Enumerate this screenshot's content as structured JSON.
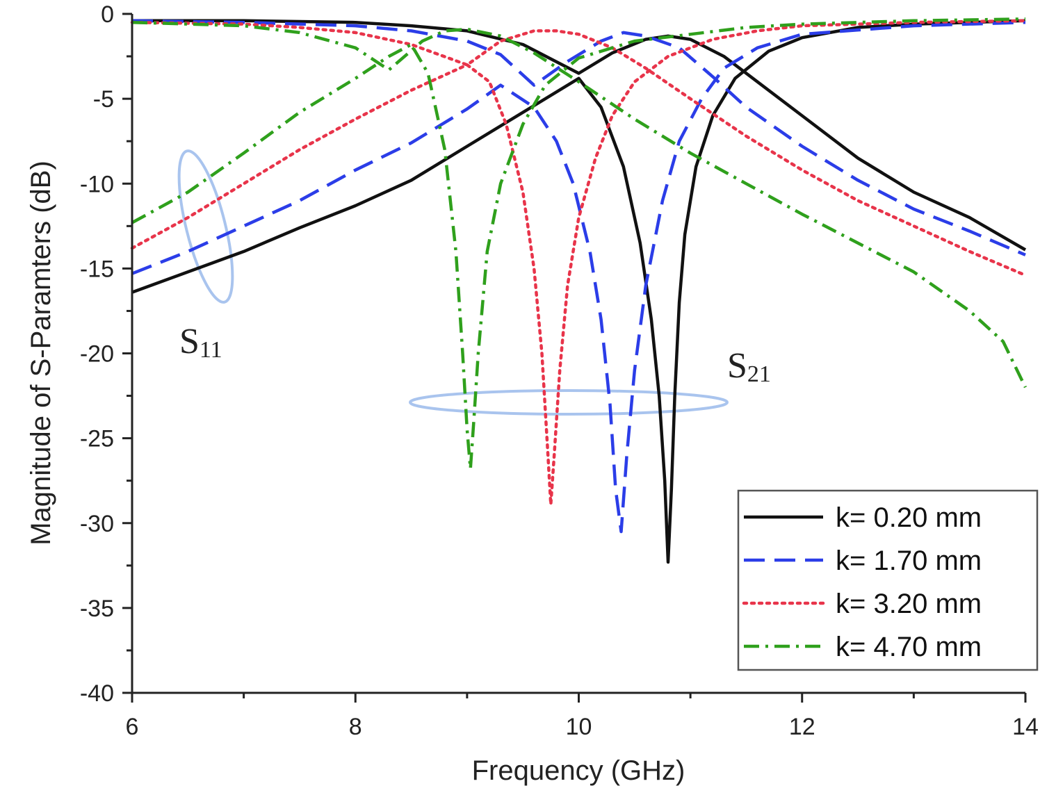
{
  "chart_data": {
    "type": "line",
    "title": "",
    "xlabel": "Frequency (GHz)",
    "ylabel": "Magnitude of S-Paramters (dB)",
    "xlim": [
      6,
      14
    ],
    "ylim": [
      -40,
      0
    ],
    "xticks": [
      6,
      8,
      10,
      12,
      14
    ],
    "yticks": [
      0,
      -5,
      -10,
      -15,
      -20,
      -25,
      -30,
      -35,
      -40
    ],
    "grid": false,
    "legend_position": "bottom-right",
    "annotations": [
      {
        "base": "S",
        "sub": "11"
      },
      {
        "base": "S",
        "sub": "21"
      }
    ],
    "series": [
      {
        "name": "k= 0.20 mm",
        "color": "#111111",
        "style": "solid",
        "s11": {
          "x": [
            6.0,
            6.5,
            7.0,
            7.5,
            8.0,
            8.5,
            9.0,
            9.5,
            10.0,
            10.2,
            10.4,
            10.55,
            10.65,
            10.72,
            10.77,
            10.8,
            10.83,
            10.86,
            10.9,
            10.95,
            11.05,
            11.2,
            11.4,
            11.7,
            12.0,
            12.5,
            13.0,
            13.5,
            14.0
          ],
          "y": [
            -16.4,
            -15.2,
            -14.0,
            -12.6,
            -11.3,
            -9.8,
            -7.8,
            -5.8,
            -3.8,
            -5.5,
            -9.0,
            -13.5,
            -18.0,
            -22.5,
            -27.5,
            -32.3,
            -28.0,
            -22.5,
            -17.0,
            -13.0,
            -9.0,
            -6.0,
            -3.8,
            -2.2,
            -1.4,
            -0.8,
            -0.6,
            -0.5,
            -0.4
          ]
        },
        "s21": {
          "x": [
            6.0,
            7.0,
            8.0,
            8.5,
            9.0,
            9.5,
            10.0,
            10.3,
            10.6,
            10.8,
            11.0,
            11.3,
            11.6,
            12.0,
            12.5,
            13.0,
            13.5,
            14.0
          ],
          "y": [
            -0.4,
            -0.4,
            -0.5,
            -0.7,
            -1.0,
            -1.8,
            -3.5,
            -2.3,
            -1.5,
            -1.3,
            -1.5,
            -2.5,
            -4.0,
            -6.0,
            -8.5,
            -10.5,
            -12.0,
            -13.9
          ]
        }
      },
      {
        "name": "k= 1.70 mm",
        "color": "#2b3de8",
        "style": "dashed",
        "s11": {
          "x": [
            6.0,
            6.5,
            7.0,
            7.5,
            8.0,
            8.5,
            9.0,
            9.3,
            9.6,
            9.8,
            9.95,
            10.1,
            10.2,
            10.28,
            10.33,
            10.38,
            10.43,
            10.5,
            10.6,
            10.75,
            10.9,
            11.1,
            11.3,
            11.6,
            12.0,
            13.0,
            14.0
          ],
          "y": [
            -15.3,
            -14.0,
            -12.5,
            -11.0,
            -9.2,
            -7.6,
            -5.6,
            -4.2,
            -5.5,
            -7.5,
            -10.0,
            -14.0,
            -18.0,
            -23.0,
            -28.0,
            -30.5,
            -26.0,
            -21.0,
            -16.0,
            -11.0,
            -7.5,
            -5.0,
            -3.2,
            -2.0,
            -1.2,
            -0.7,
            -0.5
          ]
        },
        "s21": {
          "x": [
            6.0,
            7.0,
            8.0,
            8.5,
            9.0,
            9.3,
            9.6,
            9.9,
            10.2,
            10.4,
            10.6,
            10.9,
            11.2,
            11.5,
            12.0,
            12.5,
            13.0,
            13.5,
            14.0
          ],
          "y": [
            -0.4,
            -0.5,
            -0.7,
            -1.0,
            -1.6,
            -2.4,
            -4.2,
            -2.8,
            -1.6,
            -1.1,
            -1.3,
            -2.0,
            -3.7,
            -5.5,
            -7.8,
            -9.8,
            -11.5,
            -12.8,
            -14.2
          ]
        }
      },
      {
        "name": "k= 3.20 mm",
        "color": "#e8344a",
        "style": "dotted",
        "s11": {
          "x": [
            6.0,
            6.5,
            7.0,
            7.5,
            8.0,
            8.5,
            9.0,
            9.2,
            9.35,
            9.5,
            9.6,
            9.67,
            9.72,
            9.75,
            9.78,
            9.83,
            9.9,
            10.0,
            10.15,
            10.3,
            10.5,
            10.8,
            11.2,
            11.6,
            12.0,
            13.0,
            14.0
          ],
          "y": [
            -13.8,
            -12.0,
            -10.0,
            -8.0,
            -6.2,
            -4.5,
            -3.0,
            -4.0,
            -6.5,
            -10.5,
            -15.0,
            -20.0,
            -25.5,
            -28.9,
            -26.0,
            -21.0,
            -16.0,
            -12.0,
            -8.5,
            -6.0,
            -4.0,
            -2.5,
            -1.5,
            -1.0,
            -0.7,
            -0.5,
            -0.4
          ]
        },
        "s21": {
          "x": [
            6.0,
            7.0,
            7.5,
            8.0,
            8.5,
            9.0,
            9.3,
            9.6,
            9.8,
            10.0,
            10.3,
            10.6,
            11.0,
            11.5,
            12.0,
            12.5,
            13.0,
            13.5,
            14.0
          ],
          "y": [
            -0.5,
            -0.6,
            -0.8,
            -1.1,
            -1.8,
            -3.0,
            -1.6,
            -1.0,
            -1.0,
            -1.2,
            -2.0,
            -3.2,
            -5.0,
            -7.2,
            -9.2,
            -11.0,
            -12.5,
            -14.0,
            -15.4
          ]
        }
      },
      {
        "name": "k= 4.70 mm",
        "color": "#2fa01c",
        "style": "dashdot",
        "s11": {
          "x": [
            6.0,
            6.5,
            7.0,
            7.5,
            8.0,
            8.3,
            8.5,
            8.65,
            8.8,
            8.9,
            8.96,
            9.0,
            9.03,
            9.06,
            9.1,
            9.18,
            9.3,
            9.5,
            9.7,
            10.0,
            10.5,
            11.0,
            11.5,
            12.0,
            13.0,
            14.0
          ],
          "y": [
            -12.3,
            -10.5,
            -8.2,
            -5.8,
            -3.8,
            -2.5,
            -1.8,
            -3.5,
            -8.0,
            -14.0,
            -20.0,
            -24.5,
            -26.8,
            -24.0,
            -20.0,
            -14.0,
            -10.0,
            -6.5,
            -4.2,
            -2.6,
            -1.6,
            -1.2,
            -0.8,
            -0.6,
            -0.4,
            -0.3
          ]
        },
        "s21": {
          "x": [
            6.0,
            7.0,
            7.5,
            8.0,
            8.3,
            8.6,
            8.8,
            9.0,
            9.3,
            9.6,
            10.0,
            10.5,
            11.0,
            11.5,
            12.0,
            12.5,
            13.0,
            13.5,
            13.8,
            14.0
          ],
          "y": [
            -0.5,
            -0.7,
            -1.1,
            -2.0,
            -3.3,
            -1.6,
            -1.0,
            -0.9,
            -1.3,
            -2.3,
            -4.0,
            -6.2,
            -8.2,
            -10.0,
            -11.8,
            -13.5,
            -15.2,
            -17.5,
            -19.3,
            -22.0
          ]
        }
      }
    ]
  }
}
